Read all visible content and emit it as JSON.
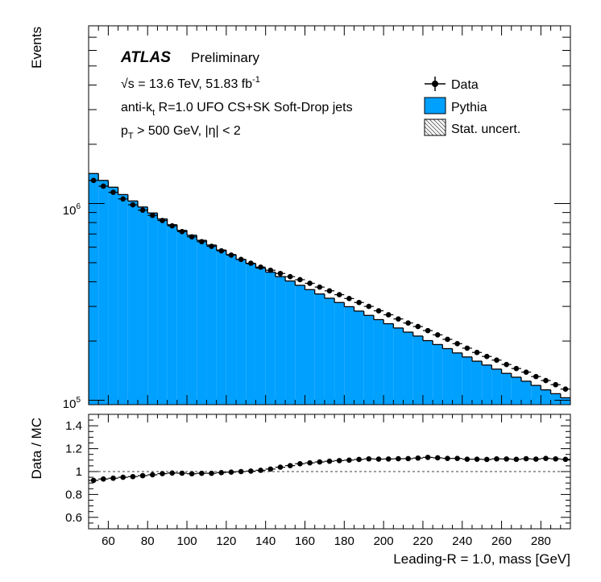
{
  "chart_data": {
    "type": "bar",
    "top_panel": {
      "ylabel": "Events",
      "yscale": "log",
      "ylim": [
        95000,
        8000000
      ],
      "y_tick_labels": [
        {
          "base": "10",
          "exp": "5",
          "value": 100000
        },
        {
          "base": "10",
          "exp": "6",
          "value": 1000000
        }
      ],
      "experiment_label": "ATLAS",
      "status_label": "Preliminary",
      "info_lines": {
        "sqrt_s": "√s = 13.6 TeV,  51.83 fb",
        "sqrt_s_sup": "-1",
        "jets_pre": "anti-k",
        "jets_sub": "t",
        "jets_post": " R=1.0 UFO CS+SK Soft-Drop jets",
        "cut_pre": "p",
        "cut_sub": "T",
        "cut_post": " > 500 GeV, |η| < 2"
      },
      "legend": {
        "placement": "top-right",
        "data_label": "Data",
        "mc_label": "Pythia",
        "unc_label": "Stat. uncert."
      },
      "colors": {
        "mc_fill": "#00a0ff",
        "data": "#000000"
      }
    },
    "bottom_panel": {
      "ylabel": "Data / MC",
      "ylim": [
        0.5,
        1.5
      ],
      "y_ticks": [
        0.6,
        0.8,
        1.0,
        1.2,
        1.4
      ],
      "y_tick_labels": [
        "0.6",
        "0.8",
        "1",
        "1.2",
        "1.4"
      ],
      "reference_line": 1.0
    },
    "xlabel": "Leading-R = 1.0, mass [GeV]",
    "xlim": [
      50,
      295
    ],
    "x_ticks": [
      60,
      80,
      100,
      120,
      140,
      160,
      180,
      200,
      220,
      240,
      260,
      280
    ],
    "x_tick_labels": [
      "60",
      "80",
      "100",
      "120",
      "140",
      "160",
      "180",
      "200",
      "220",
      "240",
      "260",
      "280"
    ],
    "bin_width": 5,
    "bin_low_edges": [
      50,
      55,
      60,
      65,
      70,
      75,
      80,
      85,
      90,
      95,
      100,
      105,
      110,
      115,
      120,
      125,
      130,
      135,
      140,
      145,
      150,
      155,
      160,
      165,
      170,
      175,
      180,
      185,
      190,
      195,
      200,
      205,
      210,
      215,
      220,
      225,
      230,
      235,
      240,
      245,
      250,
      255,
      260,
      265,
      270,
      275,
      280,
      285,
      290
    ],
    "series": [
      {
        "name": "Pythia",
        "values": [
          1420000,
          1310000,
          1210000,
          1110000,
          1030000,
          960000,
          895000,
          835000,
          780000,
          730000,
          690000,
          650000,
          615000,
          580000,
          550000,
          520000,
          495000,
          470000,
          448000,
          425000,
          404000,
          384000,
          365000,
          347000,
          330000,
          314000,
          299000,
          284000,
          270000,
          257000,
          245000,
          233000,
          222000,
          212000,
          201000,
          192000,
          183000,
          174000,
          166000,
          158000,
          151000,
          144000,
          137000,
          131000,
          125000,
          119000,
          113000,
          108000,
          103000
        ]
      },
      {
        "name": "Data",
        "values": [
          1310000,
          1225000,
          1140000,
          1055000,
          985000,
          925000,
          870000,
          820000,
          770000,
          720000,
          677000,
          640000,
          606000,
          575000,
          547000,
          520000,
          497000,
          475000,
          458000,
          441000,
          425000,
          410000,
          393000,
          376000,
          360000,
          344000,
          329000,
          314000,
          300000,
          285000,
          272000,
          259000,
          247000,
          237000,
          226000,
          215000,
          204000,
          194000,
          184000,
          175000,
          167000,
          160000,
          152000,
          145000,
          139000,
          132000,
          126000,
          120000,
          114000
        ]
      },
      {
        "name": "Data / MC",
        "values": [
          0.923,
          0.935,
          0.942,
          0.95,
          0.956,
          0.964,
          0.972,
          0.982,
          0.987,
          0.986,
          0.981,
          0.985,
          0.985,
          0.991,
          0.995,
          1.0,
          1.004,
          1.011,
          1.022,
          1.038,
          1.052,
          1.068,
          1.076,
          1.084,
          1.09,
          1.096,
          1.1,
          1.106,
          1.111,
          1.109,
          1.11,
          1.112,
          1.113,
          1.118,
          1.124,
          1.12,
          1.115,
          1.115,
          1.108,
          1.108,
          1.106,
          1.111,
          1.11,
          1.107,
          1.112,
          1.109,
          1.115,
          1.111,
          1.107
        ]
      }
    ]
  }
}
